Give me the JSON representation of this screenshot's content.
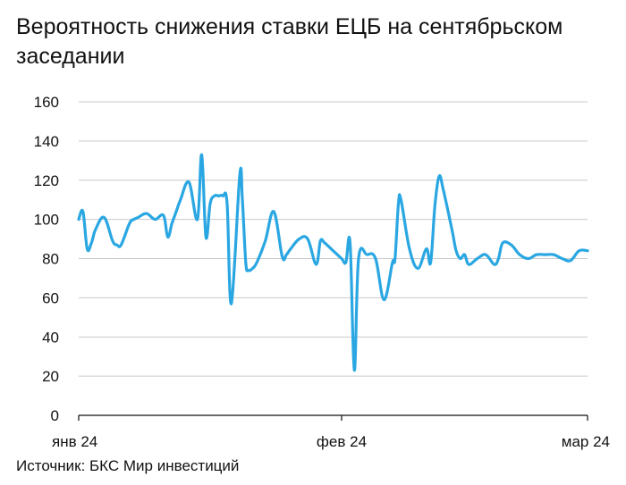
{
  "title": "Вероятность снижения ставки ЕЦБ на сентябрьском заседании",
  "source": "Источник: БКС Мир инвестиций",
  "colors": {
    "line": "#2aa7e2",
    "grid": "#c9c9c9",
    "axis": "#111111"
  },
  "chart_data": {
    "type": "line",
    "title": "Вероятность снижения ставки ЕЦБ на сентябрьском заседании",
    "xlabel": "",
    "ylabel": "",
    "ylim": [
      0,
      160
    ],
    "yticks": [
      0,
      20,
      40,
      60,
      80,
      100,
      120,
      140,
      160
    ],
    "xticks": [
      {
        "x": 0,
        "label": "янв 24"
      },
      {
        "x": 31,
        "label": "фев 24"
      },
      {
        "x": 60,
        "label": "мар 24"
      }
    ],
    "xlim": [
      0,
      60
    ],
    "grid": true,
    "series": [
      {
        "x": [
          0,
          0.5,
          1,
          1.5,
          2,
          3,
          4,
          4.5,
          5,
          6,
          6.5,
          7,
          8,
          9,
          10,
          10.5,
          11,
          11.5,
          12,
          13,
          14,
          14.5,
          15,
          15.5,
          16,
          16.5,
          17,
          17.5,
          18,
          19,
          19.3,
          19.7,
          20,
          20.5,
          21,
          22,
          23,
          24,
          24.5,
          25,
          26,
          27,
          28,
          28.5,
          29,
          30,
          31,
          31.5,
          32,
          32.5,
          33,
          34,
          35,
          36,
          37,
          37.3,
          37.7,
          38,
          39,
          40,
          41,
          41.5,
          42,
          42.5,
          43,
          44,
          44.5,
          45,
          45.5,
          46,
          47,
          48,
          49,
          49.5,
          50,
          51,
          52,
          53,
          54,
          55,
          56,
          57,
          58,
          59,
          60
        ],
        "y": [
          100,
          104,
          85,
          88,
          95,
          101,
          89,
          87,
          87,
          98,
          100,
          101,
          103,
          100,
          102,
          91,
          98,
          104,
          110,
          119,
          100,
          133,
          91,
          108,
          112,
          112,
          112,
          108,
          57,
          123,
          110,
          78,
          74,
          75,
          78,
          89,
          104,
          81,
          82,
          85,
          90,
          90,
          77,
          89,
          88,
          84,
          80,
          78,
          88,
          23,
          80,
          82,
          80,
          59,
          78,
          80,
          108,
          110,
          85,
          75,
          85,
          78,
          107,
          122,
          115,
          95,
          84,
          80,
          82,
          77,
          80,
          82,
          77,
          80,
          88,
          87,
          82,
          80,
          82,
          82,
          82,
          80,
          79,
          84,
          84
        ]
      }
    ]
  }
}
